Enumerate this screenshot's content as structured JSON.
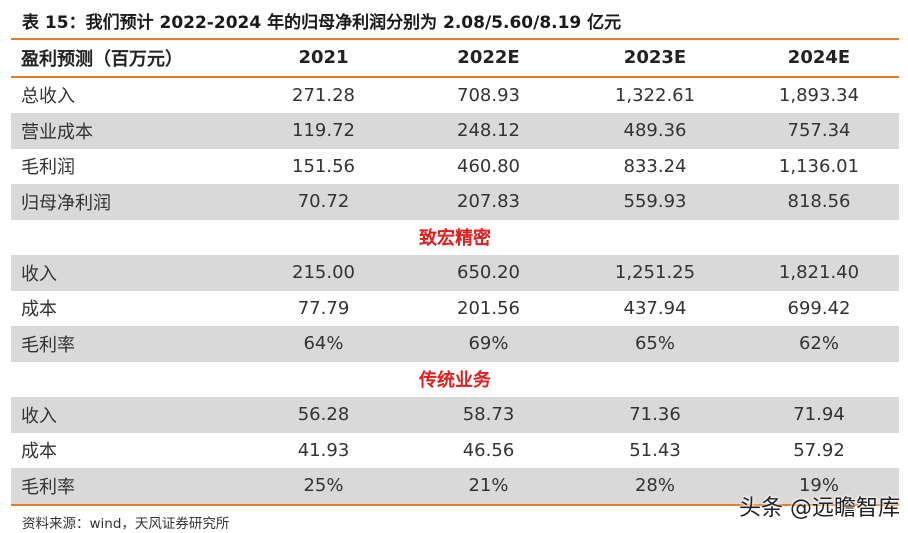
{
  "caption": "表 15：我们预计 2022-2024 年的归母净利润分别为 2.08/5.60/8.19 亿元",
  "header": [
    "盈利预测（百万元）",
    "2021",
    "2022E",
    "2023E",
    "2024E"
  ],
  "rows": [
    {
      "type": "data",
      "shade": false,
      "label": "总收入",
      "values": [
        "271.28",
        "708.93",
        "1,322.61",
        "1,893.34"
      ]
    },
    {
      "type": "data",
      "shade": true,
      "label": "营业成本",
      "values": [
        "119.72",
        "248.12",
        "489.36",
        "757.34"
      ]
    },
    {
      "type": "data",
      "shade": false,
      "label": "毛利润",
      "values": [
        "151.56",
        "460.80",
        "833.24",
        "1,136.01"
      ]
    },
    {
      "type": "data",
      "shade": true,
      "label": "归母净利润",
      "values": [
        "70.72",
        "207.83",
        "559.93",
        "818.56"
      ]
    },
    {
      "type": "section",
      "label": "致宏精密"
    },
    {
      "type": "data",
      "shade": true,
      "label": "收入",
      "values": [
        "215.00",
        "650.20",
        "1,251.25",
        "1,821.40"
      ]
    },
    {
      "type": "data",
      "shade": false,
      "label": "成本",
      "values": [
        "77.79",
        "201.56",
        "437.94",
        "699.42"
      ]
    },
    {
      "type": "data",
      "shade": true,
      "label": "毛利率",
      "values": [
        "64%",
        "69%",
        "65%",
        "62%"
      ]
    },
    {
      "type": "section",
      "label": "传统业务"
    },
    {
      "type": "data",
      "shade": true,
      "label": "收入",
      "values": [
        "56.28",
        "58.73",
        "71.36",
        "71.94"
      ]
    },
    {
      "type": "data",
      "shade": false,
      "label": "成本",
      "values": [
        "41.93",
        "46.56",
        "51.43",
        "57.92"
      ]
    },
    {
      "type": "data",
      "shade": true,
      "label": "毛利率",
      "values": [
        "25%",
        "21%",
        "28%",
        "19%"
      ]
    }
  ],
  "source": "资料来源：wind，天风证券研究所",
  "watermark": "头条 @远瞻智库",
  "colors": {
    "accent": "#e87b26",
    "section_text": "#e41c1c",
    "shade": "#d9d9d9"
  }
}
